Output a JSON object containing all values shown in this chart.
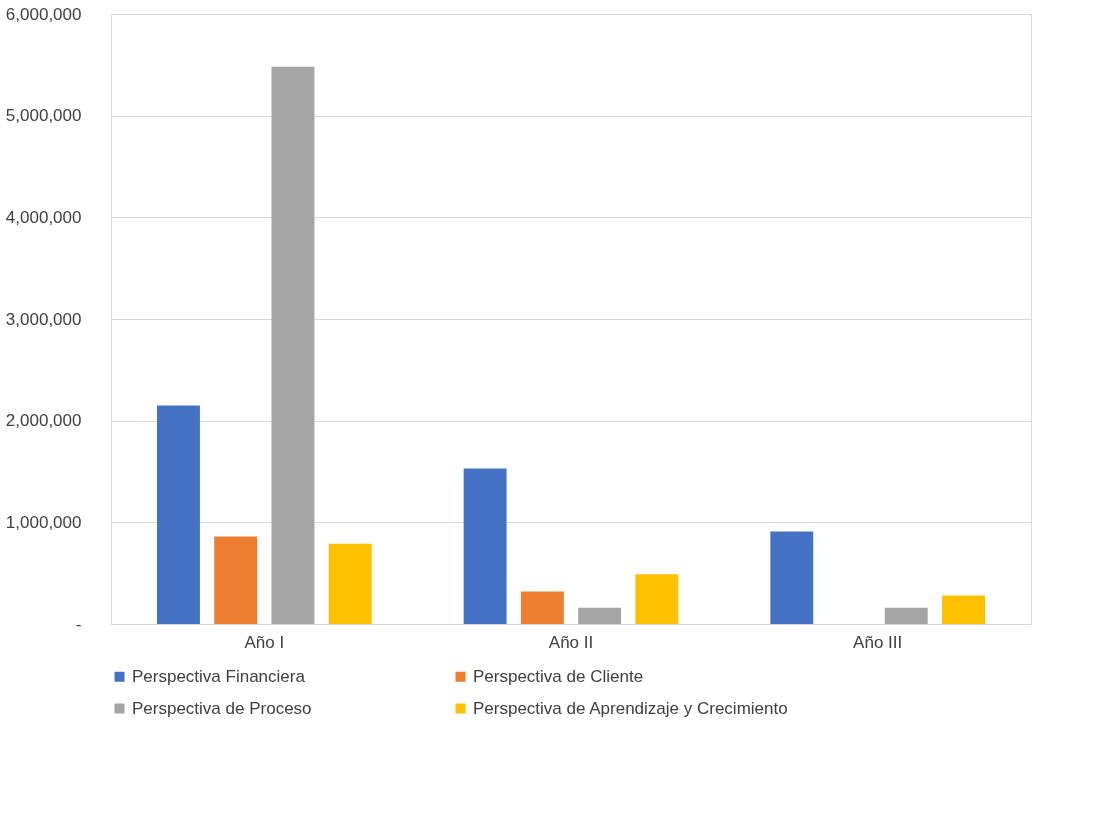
{
  "chart_data": {
    "type": "bar",
    "categories": [
      "Año I",
      "Año II",
      "Año III"
    ],
    "series": [
      {
        "name": "Perspectiva Financiera",
        "color": "#4472c4",
        "values": [
          2150000,
          1530000,
          910000
        ]
      },
      {
        "name": "Perspectiva de Cliente",
        "color": "#ed7d31",
        "values": [
          860000,
          320000,
          0
        ]
      },
      {
        "name": "Perspectiva de Proceso",
        "color": "#a5a5a5",
        "values": [
          5480000,
          160000,
          160000
        ]
      },
      {
        "name": "Perspectiva de Aprendizaje y Crecimiento",
        "color": "#ffc000",
        "values": [
          790000,
          490000,
          280000
        ]
      }
    ],
    "ylim": [
      0,
      6000000
    ],
    "yticks": [
      {
        "value": 0,
        "label": "-"
      },
      {
        "value": 1000000,
        "label": "1,000,000"
      },
      {
        "value": 2000000,
        "label": "2,000,000"
      },
      {
        "value": 3000000,
        "label": "3,000,000"
      },
      {
        "value": 4000000,
        "label": "4,000,000"
      },
      {
        "value": 5000000,
        "label": "5,000,000"
      },
      {
        "value": 6000000,
        "label": "6,000,000"
      }
    ],
    "grid": "y",
    "legend": "bottom"
  }
}
